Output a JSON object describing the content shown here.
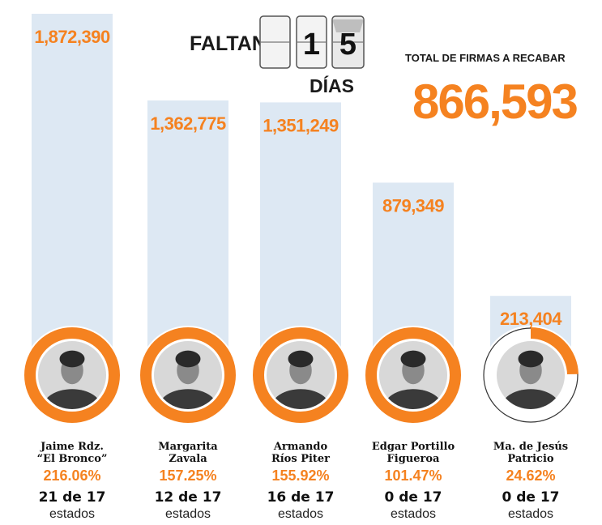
{
  "countdown": {
    "faltan_label": "FALTAN",
    "digits": [
      "",
      "1",
      "5"
    ],
    "dias_label": "DÍAS"
  },
  "total": {
    "label": "TOTAL DE FIRMAS A RECABAR",
    "value": "866,593"
  },
  "colors": {
    "bar": "#dde8f3",
    "accent": "#f58220",
    "ring_track": "#ffffff",
    "text": "#111111"
  },
  "chart_data": {
    "type": "bar",
    "title": "",
    "xlabel": "",
    "ylabel": "",
    "ylim": [
      0,
      1872390
    ],
    "categories": [
      "Jaime Rdz. “El Bronco”",
      "Margarita Zavala",
      "Armando Ríos Piter",
      "Edgar Portillo Figueroa",
      "Ma. de Jesús Patricio"
    ],
    "series": [
      {
        "values": [
          1872390,
          1362775,
          1351249,
          879349,
          213404
        ]
      }
    ],
    "candidates": [
      {
        "name_lines": [
          "Jaime Rdz.",
          "“El Bronco”"
        ],
        "value_label": "1,872,390",
        "percent": "216.06%",
        "percent_value": 216.06,
        "states": "21 de 17",
        "states_word": "estados",
        "photo": "person-photo"
      },
      {
        "name_lines": [
          "Margarita",
          "Zavala"
        ],
        "value_label": "1,362,775",
        "percent": "157.25%",
        "percent_value": 157.25,
        "states": "12 de 17",
        "states_word": "estados",
        "photo": "person-photo"
      },
      {
        "name_lines": [
          "Armando",
          "Ríos Piter"
        ],
        "value_label": "1,351,249",
        "percent": "155.92%",
        "percent_value": 155.92,
        "states": "16 de 17",
        "states_word": "estados",
        "photo": "person-photo"
      },
      {
        "name_lines": [
          "Edgar Portillo",
          "Figueroa"
        ],
        "value_label": "879,349",
        "percent": "101.47%",
        "percent_value": 101.47,
        "states": "0 de 17",
        "states_word": "estados",
        "photo": "person-photo"
      },
      {
        "name_lines": [
          "Ma. de Jesús",
          "Patricio"
        ],
        "value_label": "213,404",
        "percent": "24.62%",
        "percent_value": 24.62,
        "states": "0 de 17",
        "states_word": "estados",
        "photo": "person-photo"
      }
    ]
  }
}
